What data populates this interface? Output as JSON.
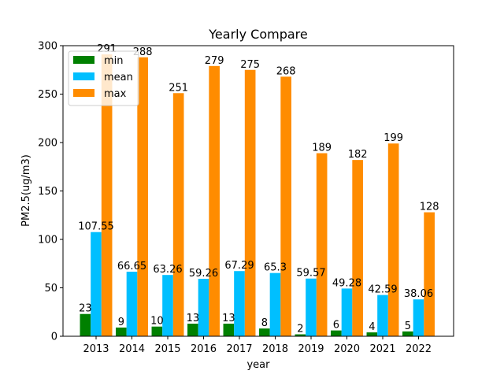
{
  "chart_data": {
    "type": "bar",
    "title": "Yearly Compare",
    "xlabel": "year",
    "ylabel": "PM2.5(ug/m3)",
    "ylim": [
      0,
      300
    ],
    "yticks": [
      0,
      50,
      100,
      150,
      200,
      250,
      300
    ],
    "categories": [
      "2013",
      "2014",
      "2015",
      "2016",
      "2017",
      "2018",
      "2019",
      "2020",
      "2021",
      "2022"
    ],
    "series": [
      {
        "name": "min",
        "color": "#008000",
        "values": [
          23,
          9,
          10,
          13,
          13,
          8,
          2,
          6,
          4,
          5
        ]
      },
      {
        "name": "mean",
        "color": "#00bfff",
        "values": [
          107.55,
          66.65,
          63.26,
          59.26,
          67.29,
          65.3,
          59.57,
          49.28,
          42.59,
          38.06
        ]
      },
      {
        "name": "max",
        "color": "#ff8c00",
        "values": [
          291,
          288,
          251,
          279,
          275,
          268,
          189,
          182,
          199,
          128
        ]
      }
    ],
    "grid": false,
    "legend_position": "top-left"
  }
}
